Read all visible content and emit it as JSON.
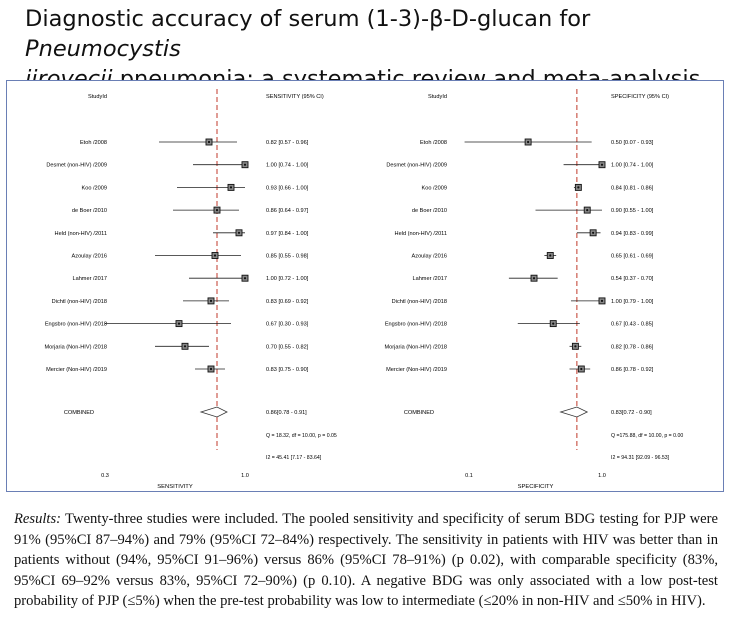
{
  "title": {
    "line1_plain": "Diagnostic accuracy of serum (1-3)-β-D-glucan for ",
    "line1_italic": "Pneumocystis",
    "line2_italic": "jirovecii",
    "line2_plain": " pneumonia: a systematic review and meta-analysis"
  },
  "results": {
    "lead": "Results:",
    "text": " Twenty-three studies were included. The pooled sensitivity and specificity of serum BDG testing for PJP were 91% (95%CI 87–94%) and 79% (95%CI 72–84%) respectively. The sensitivity in patients with HIV was better than in patients without (94%, 95%CI 91–96%) versus 86% (95%CI 78–91%) (p 0.02), with comparable specificity (83%, 95%CI 69–92% versus 83%, 95%CI 72–90%) (p 0.10). A negative BDG was only associated with a low post-test probability of PJP (≤5%) when the pre-test probability was low to intermediate (≤20% in non-HIV and ≤50% in HIV)."
  },
  "chart_data": [
    {
      "type": "forest",
      "study_header": "StudyId",
      "estimate_header": "SENSITIVITY (95% CI)",
      "xlabel": "SENSITIVITY",
      "xlim": [
        0.3,
        1.0
      ],
      "tick_labels": [
        "0.3",
        "1.0"
      ],
      "reference_line": 0.86,
      "color": "#c0392b",
      "studies": [
        {
          "label": "Etoh /2008",
          "est": 0.82,
          "lo": 0.57,
          "hi": 0.96,
          "text": "0.82 [0.57 - 0.96]"
        },
        {
          "label": "Desmet (non-HIV) /2009",
          "est": 1.0,
          "lo": 0.74,
          "hi": 1.0,
          "text": "1.00 [0.74 - 1.00]"
        },
        {
          "label": "Koo /2009",
          "est": 0.93,
          "lo": 0.66,
          "hi": 1.0,
          "text": "0.93 [0.66 - 1.00]"
        },
        {
          "label": "de Boer /2010",
          "est": 0.86,
          "lo": 0.64,
          "hi": 0.97,
          "text": "0.86 [0.64 - 0.97]"
        },
        {
          "label": "Held (non-HIV) /2011",
          "est": 0.97,
          "lo": 0.84,
          "hi": 1.0,
          "text": "0.97 [0.84 - 1.00]"
        },
        {
          "label": "Azoulay /2016",
          "est": 0.85,
          "lo": 0.55,
          "hi": 0.98,
          "text": "0.85 [0.55 - 0.98]"
        },
        {
          "label": "Lahmer /2017",
          "est": 1.0,
          "lo": 0.72,
          "hi": 1.0,
          "text": "1.00 [0.72 - 1.00]"
        },
        {
          "label": "Dichtl (non-HIV) /2018",
          "est": 0.83,
          "lo": 0.69,
          "hi": 0.92,
          "text": "0.83 [0.69 - 0.92]"
        },
        {
          "label": "Engsbro (non-HIV) /2018",
          "est": 0.67,
          "lo": 0.3,
          "hi": 0.93,
          "text": "0.67 [0.30 - 0.93]"
        },
        {
          "label": "Morjaria (Non-HIV) /2018",
          "est": 0.7,
          "lo": 0.55,
          "hi": 0.82,
          "text": "0.70 [0.55 - 0.82]"
        },
        {
          "label": "Mercier (Non-HIV) /2019",
          "est": 0.83,
          "lo": 0.75,
          "hi": 0.9,
          "text": "0.83 [0.75 - 0.90]"
        }
      ],
      "combined": {
        "label": "COMBINED",
        "est": 0.86,
        "lo": 0.78,
        "hi": 0.91,
        "text": "0.86[0.78 - 0.91]"
      },
      "stats": [
        "Q = 18.32, df = 10.00, p = 0.05",
        "I2 = 45.41 [7.17 - 83.64]"
      ]
    },
    {
      "type": "forest",
      "study_header": "StudyId",
      "estimate_header": "SPECIFICITY (95% CI)",
      "xlabel": "SPECIFICITY",
      "xlim": [
        0.1,
        1.0
      ],
      "tick_labels": [
        "0.1",
        "1.0"
      ],
      "reference_line": 0.83,
      "color": "#c0392b",
      "studies": [
        {
          "label": "Etoh /2008",
          "est": 0.5,
          "lo": 0.07,
          "hi": 0.93,
          "text": "0.50 [0.07 - 0.93]"
        },
        {
          "label": "Desmet (non-HIV) /2009",
          "est": 1.0,
          "lo": 0.74,
          "hi": 1.0,
          "text": "1.00 [0.74 - 1.00]"
        },
        {
          "label": "Koo /2009",
          "est": 0.84,
          "lo": 0.81,
          "hi": 0.86,
          "text": "0.84 [0.81 - 0.86]"
        },
        {
          "label": "de Boer /2010",
          "est": 0.9,
          "lo": 0.55,
          "hi": 1.0,
          "text": "0.90 [0.55 - 1.00]"
        },
        {
          "label": "Held (non-HIV) /2011",
          "est": 0.94,
          "lo": 0.83,
          "hi": 0.99,
          "text": "0.94 [0.83 - 0.99]"
        },
        {
          "label": "Azoulay /2016",
          "est": 0.65,
          "lo": 0.61,
          "hi": 0.69,
          "text": "0.65 [0.61 - 0.69]"
        },
        {
          "label": "Lahmer /2017",
          "est": 0.54,
          "lo": 0.37,
          "hi": 0.7,
          "text": "0.54 [0.37 - 0.70]"
        },
        {
          "label": "Dichtl (non-HIV) /2018",
          "est": 1.0,
          "lo": 0.79,
          "hi": 1.0,
          "text": "1.00 [0.79 - 1.00]"
        },
        {
          "label": "Engsbro (non-HIV) /2018",
          "est": 0.67,
          "lo": 0.43,
          "hi": 0.85,
          "text": "0.67 [0.43 - 0.85]"
        },
        {
          "label": "Morjaria (Non-HIV) /2018",
          "est": 0.82,
          "lo": 0.78,
          "hi": 0.86,
          "text": "0.82 [0.78 - 0.86]"
        },
        {
          "label": "Mercier (Non-HIV) /2019",
          "est": 0.86,
          "lo": 0.78,
          "hi": 0.92,
          "text": "0.86 [0.78 - 0.92]"
        }
      ],
      "combined": {
        "label": "COMBINED",
        "est": 0.83,
        "lo": 0.72,
        "hi": 0.9,
        "text": "0.83[0.72 - 0.90]"
      },
      "stats": [
        "Q =175.88, df = 10.00, p = 0.00",
        "I2 = 94.31 [92.09 - 96.53]"
      ]
    }
  ]
}
